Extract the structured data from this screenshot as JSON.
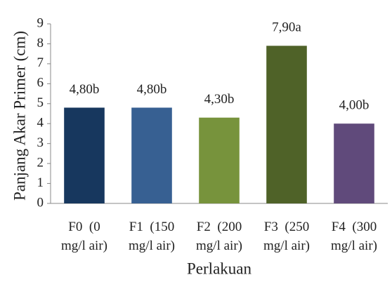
{
  "chart_data": {
    "type": "bar",
    "ylabel": "Panjang Akar Primer (cm)",
    "xlabel": "Perlakuan",
    "categories": [
      "F0  (0 mg/l air)",
      "F1  (150 mg/l air)",
      "F2  (200 mg/l air)",
      "F3  (250 mg/l air)",
      "F4  (300 mg/l air)"
    ],
    "values": [
      4.8,
      4.8,
      4.3,
      7.9,
      4.0
    ],
    "value_labels": [
      "4,80b",
      "4,80b",
      "4,30b",
      "7,90a",
      "4,00b"
    ],
    "colors": [
      "#17375e",
      "#376092",
      "#77933c",
      "#4f6228",
      "#604a7b"
    ],
    "ylim": [
      0,
      9
    ],
    "yticks": [
      0,
      1,
      2,
      3,
      4,
      5,
      6,
      7,
      8,
      9
    ],
    "grid": false
  }
}
